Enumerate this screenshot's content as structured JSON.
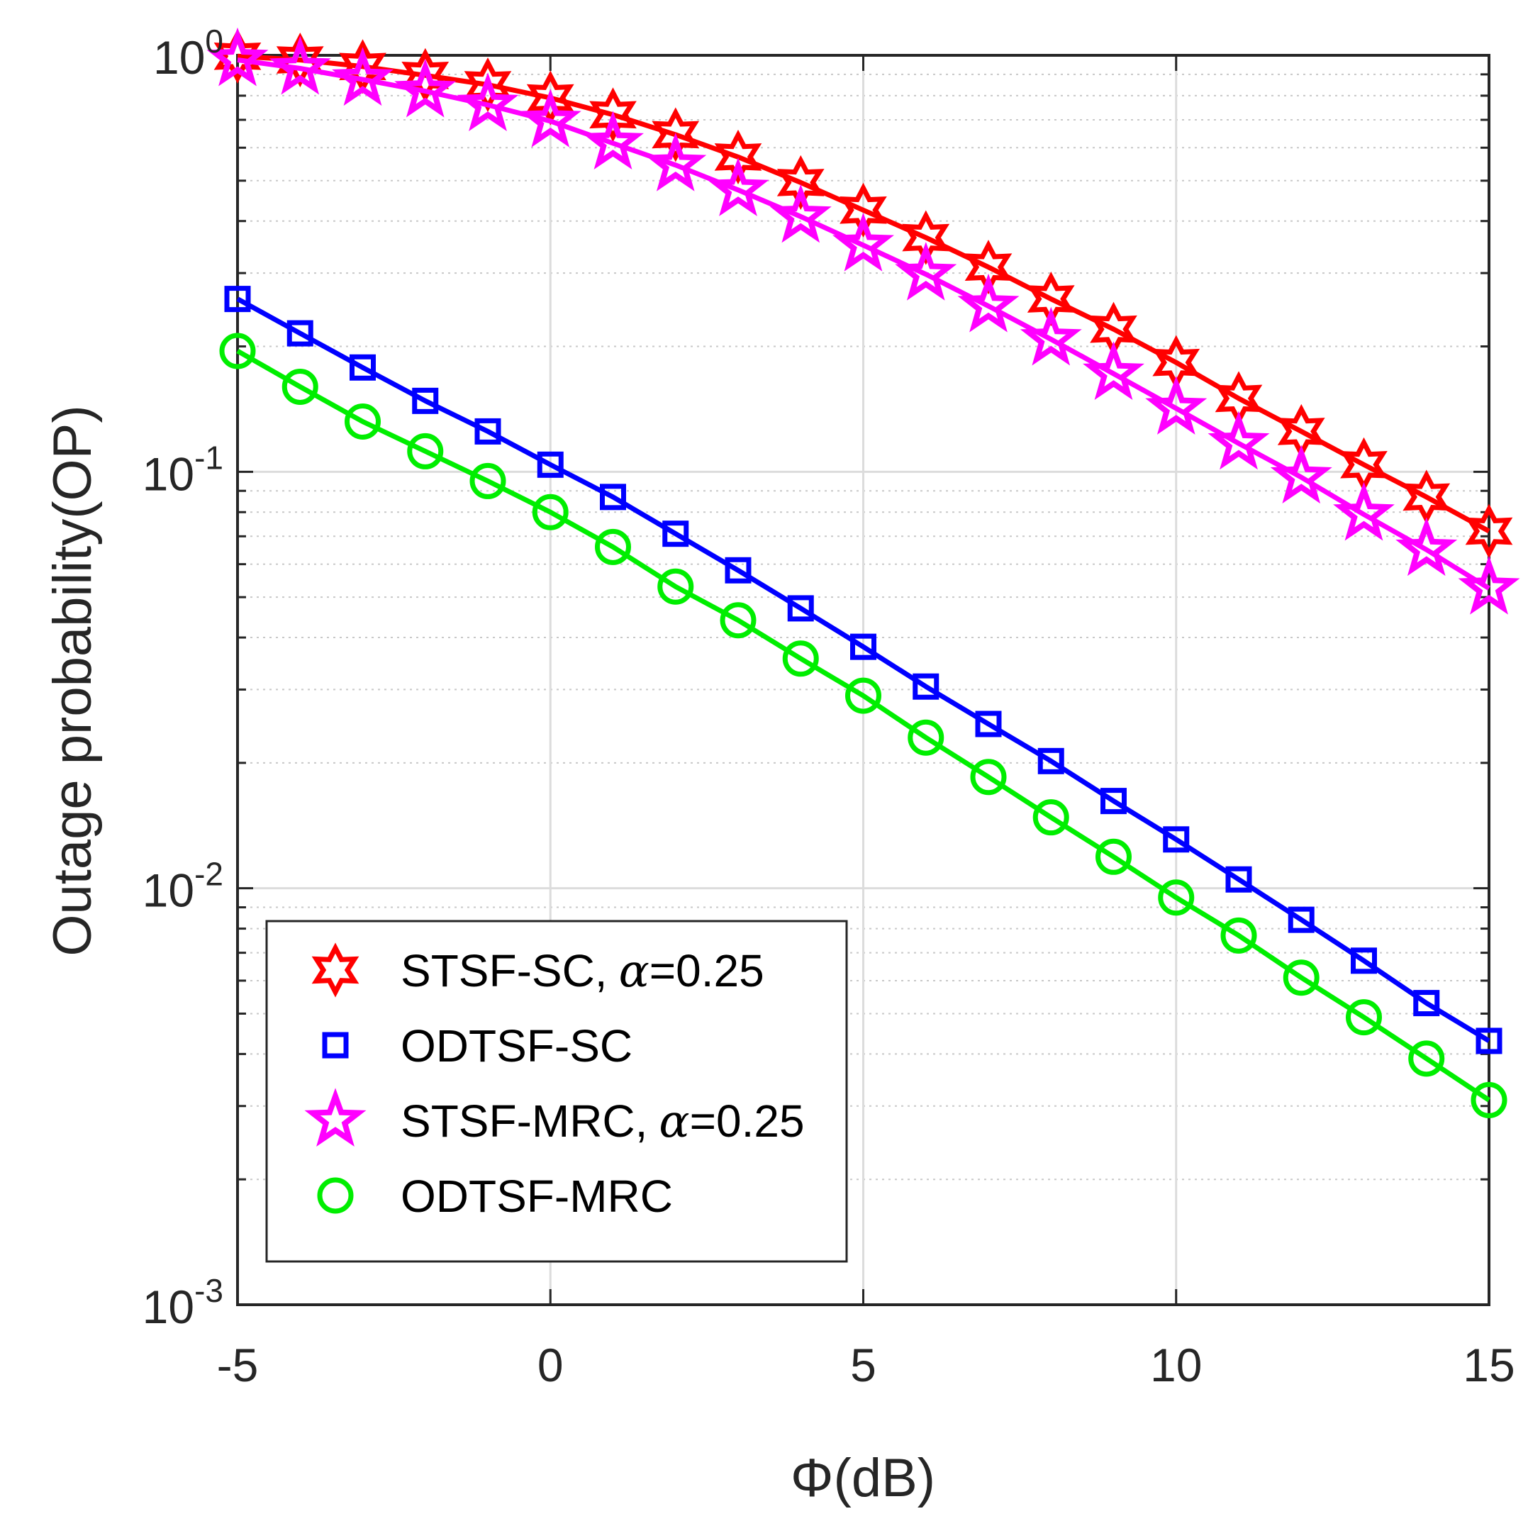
{
  "chart_data": {
    "type": "line",
    "xlabel": "Φ(dB)",
    "ylabel": "Outage probability(OP)",
    "xscale": "linear",
    "yscale": "log",
    "xlim": [
      -5,
      15
    ],
    "ylim": [
      0.001,
      1
    ],
    "grid": true,
    "x": [
      -5,
      -4,
      -3,
      -2,
      -1,
      0,
      1,
      2,
      3,
      4,
      5,
      6,
      7,
      8,
      9,
      10,
      11,
      12,
      13,
      14,
      15
    ],
    "x_ticks": [
      {
        "value": -5,
        "label": "-5"
      },
      {
        "value": 0,
        "label": "0"
      },
      {
        "value": 5,
        "label": "5"
      },
      {
        "value": 10,
        "label": "10"
      },
      {
        "value": 15,
        "label": "15"
      }
    ],
    "y_ticks": [
      {
        "value": 1,
        "base": "10",
        "exp": "0"
      },
      {
        "value": 0.1,
        "base": "10",
        "exp": "-1"
      },
      {
        "value": 0.01,
        "base": "10",
        "exp": "-2"
      },
      {
        "value": 0.001,
        "base": "10",
        "exp": "-3"
      }
    ],
    "legend_position": "bottom-left",
    "series": [
      {
        "name": "STSF-SC",
        "legend_label": "STSF-SC,",
        "legend_alpha": "α",
        "legend_suffix": "=0.25",
        "color": "#ff0000",
        "marker": "hexagram",
        "values": [
          0.995,
          0.975,
          0.94,
          0.895,
          0.85,
          0.79,
          0.72,
          0.645,
          0.57,
          0.495,
          0.425,
          0.365,
          0.31,
          0.26,
          0.22,
          0.183,
          0.15,
          0.125,
          0.104,
          0.087,
          0.072
        ]
      },
      {
        "name": "ODTSF-SC",
        "legend_label": "ODTSF-SC",
        "color": "#0000ff",
        "marker": "square",
        "values": [
          0.26,
          0.215,
          0.178,
          0.148,
          0.125,
          0.104,
          0.087,
          0.071,
          0.058,
          0.047,
          0.038,
          0.0305,
          0.0248,
          0.0202,
          0.0162,
          0.0131,
          0.0105,
          0.0084,
          0.0067,
          0.0053,
          0.0043
        ]
      },
      {
        "name": "STSF-MRC",
        "legend_label": "STSF-MRC,",
        "legend_alpha": "α",
        "legend_suffix": "=0.25",
        "color": "#ff00ff",
        "marker": "pentagram",
        "values": [
          0.975,
          0.93,
          0.875,
          0.82,
          0.76,
          0.695,
          0.615,
          0.545,
          0.475,
          0.41,
          0.35,
          0.298,
          0.25,
          0.208,
          0.172,
          0.142,
          0.117,
          0.097,
          0.079,
          0.065,
          0.0525
        ]
      },
      {
        "name": "ODTSF-MRC",
        "legend_label": "ODTSF-MRC",
        "color": "#00ee00",
        "marker": "circle",
        "values": [
          0.195,
          0.16,
          0.132,
          0.112,
          0.095,
          0.08,
          0.066,
          0.053,
          0.044,
          0.0356,
          0.029,
          0.023,
          0.0185,
          0.0148,
          0.0119,
          0.0095,
          0.0077,
          0.0061,
          0.0049,
          0.0039,
          0.0031
        ]
      }
    ]
  }
}
